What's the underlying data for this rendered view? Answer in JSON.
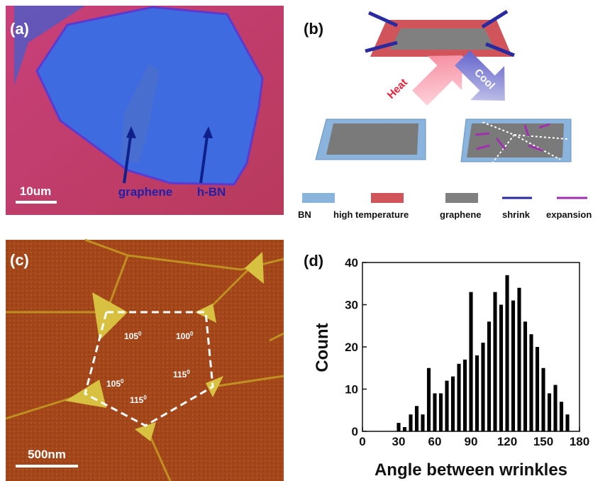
{
  "panel_a": {
    "label": "(a)",
    "scale_bar": "10um",
    "annotations": [
      "graphene",
      "h-BN"
    ]
  },
  "panel_b": {
    "label": "(b)",
    "arrows": [
      "Heat",
      "Cool"
    ],
    "legend": [
      "BN",
      "high temperature",
      "graphene",
      "shrink",
      "expansion"
    ]
  },
  "panel_c": {
    "label": "(c)",
    "scale_bar": "500nm",
    "angles": [
      {
        "value": "105",
        "sup": "0"
      },
      {
        "value": "100",
        "sup": "0"
      },
      {
        "value": "115",
        "sup": "0"
      },
      {
        "value": "115",
        "sup": "0"
      },
      {
        "value": "105",
        "sup": "0"
      }
    ]
  },
  "chart_data": {
    "type": "histogram",
    "title": "(d)",
    "xlabel": "Angle between wrinkles",
    "ylabel": "Count",
    "bins": [
      27.5,
      32.5,
      37.5,
      42.5,
      47.5,
      52.5,
      57.5,
      62.5,
      67.5,
      72.5,
      77.5,
      82.5,
      87.5,
      92.5,
      97.5,
      102.5,
      107.5,
      112.5,
      117.5,
      122.5,
      127.5,
      132.5,
      137.5,
      142.5,
      147.5,
      152.5,
      157.5,
      162.5,
      167.5,
      172.5
    ],
    "values": [
      2,
      1,
      4,
      6,
      4,
      15,
      9,
      9,
      12,
      13,
      16,
      17,
      33,
      18,
      21,
      26,
      33,
      30,
      37,
      31,
      34,
      26,
      23,
      20,
      15,
      9,
      11,
      7,
      4
    ],
    "color": "#000000",
    "xlim": [
      0,
      180
    ],
    "xticks": [
      0,
      30,
      60,
      90,
      120,
      150,
      180
    ],
    "ylim": [
      0,
      40
    ],
    "yticks": [
      0,
      10,
      20,
      30,
      40
    ]
  }
}
